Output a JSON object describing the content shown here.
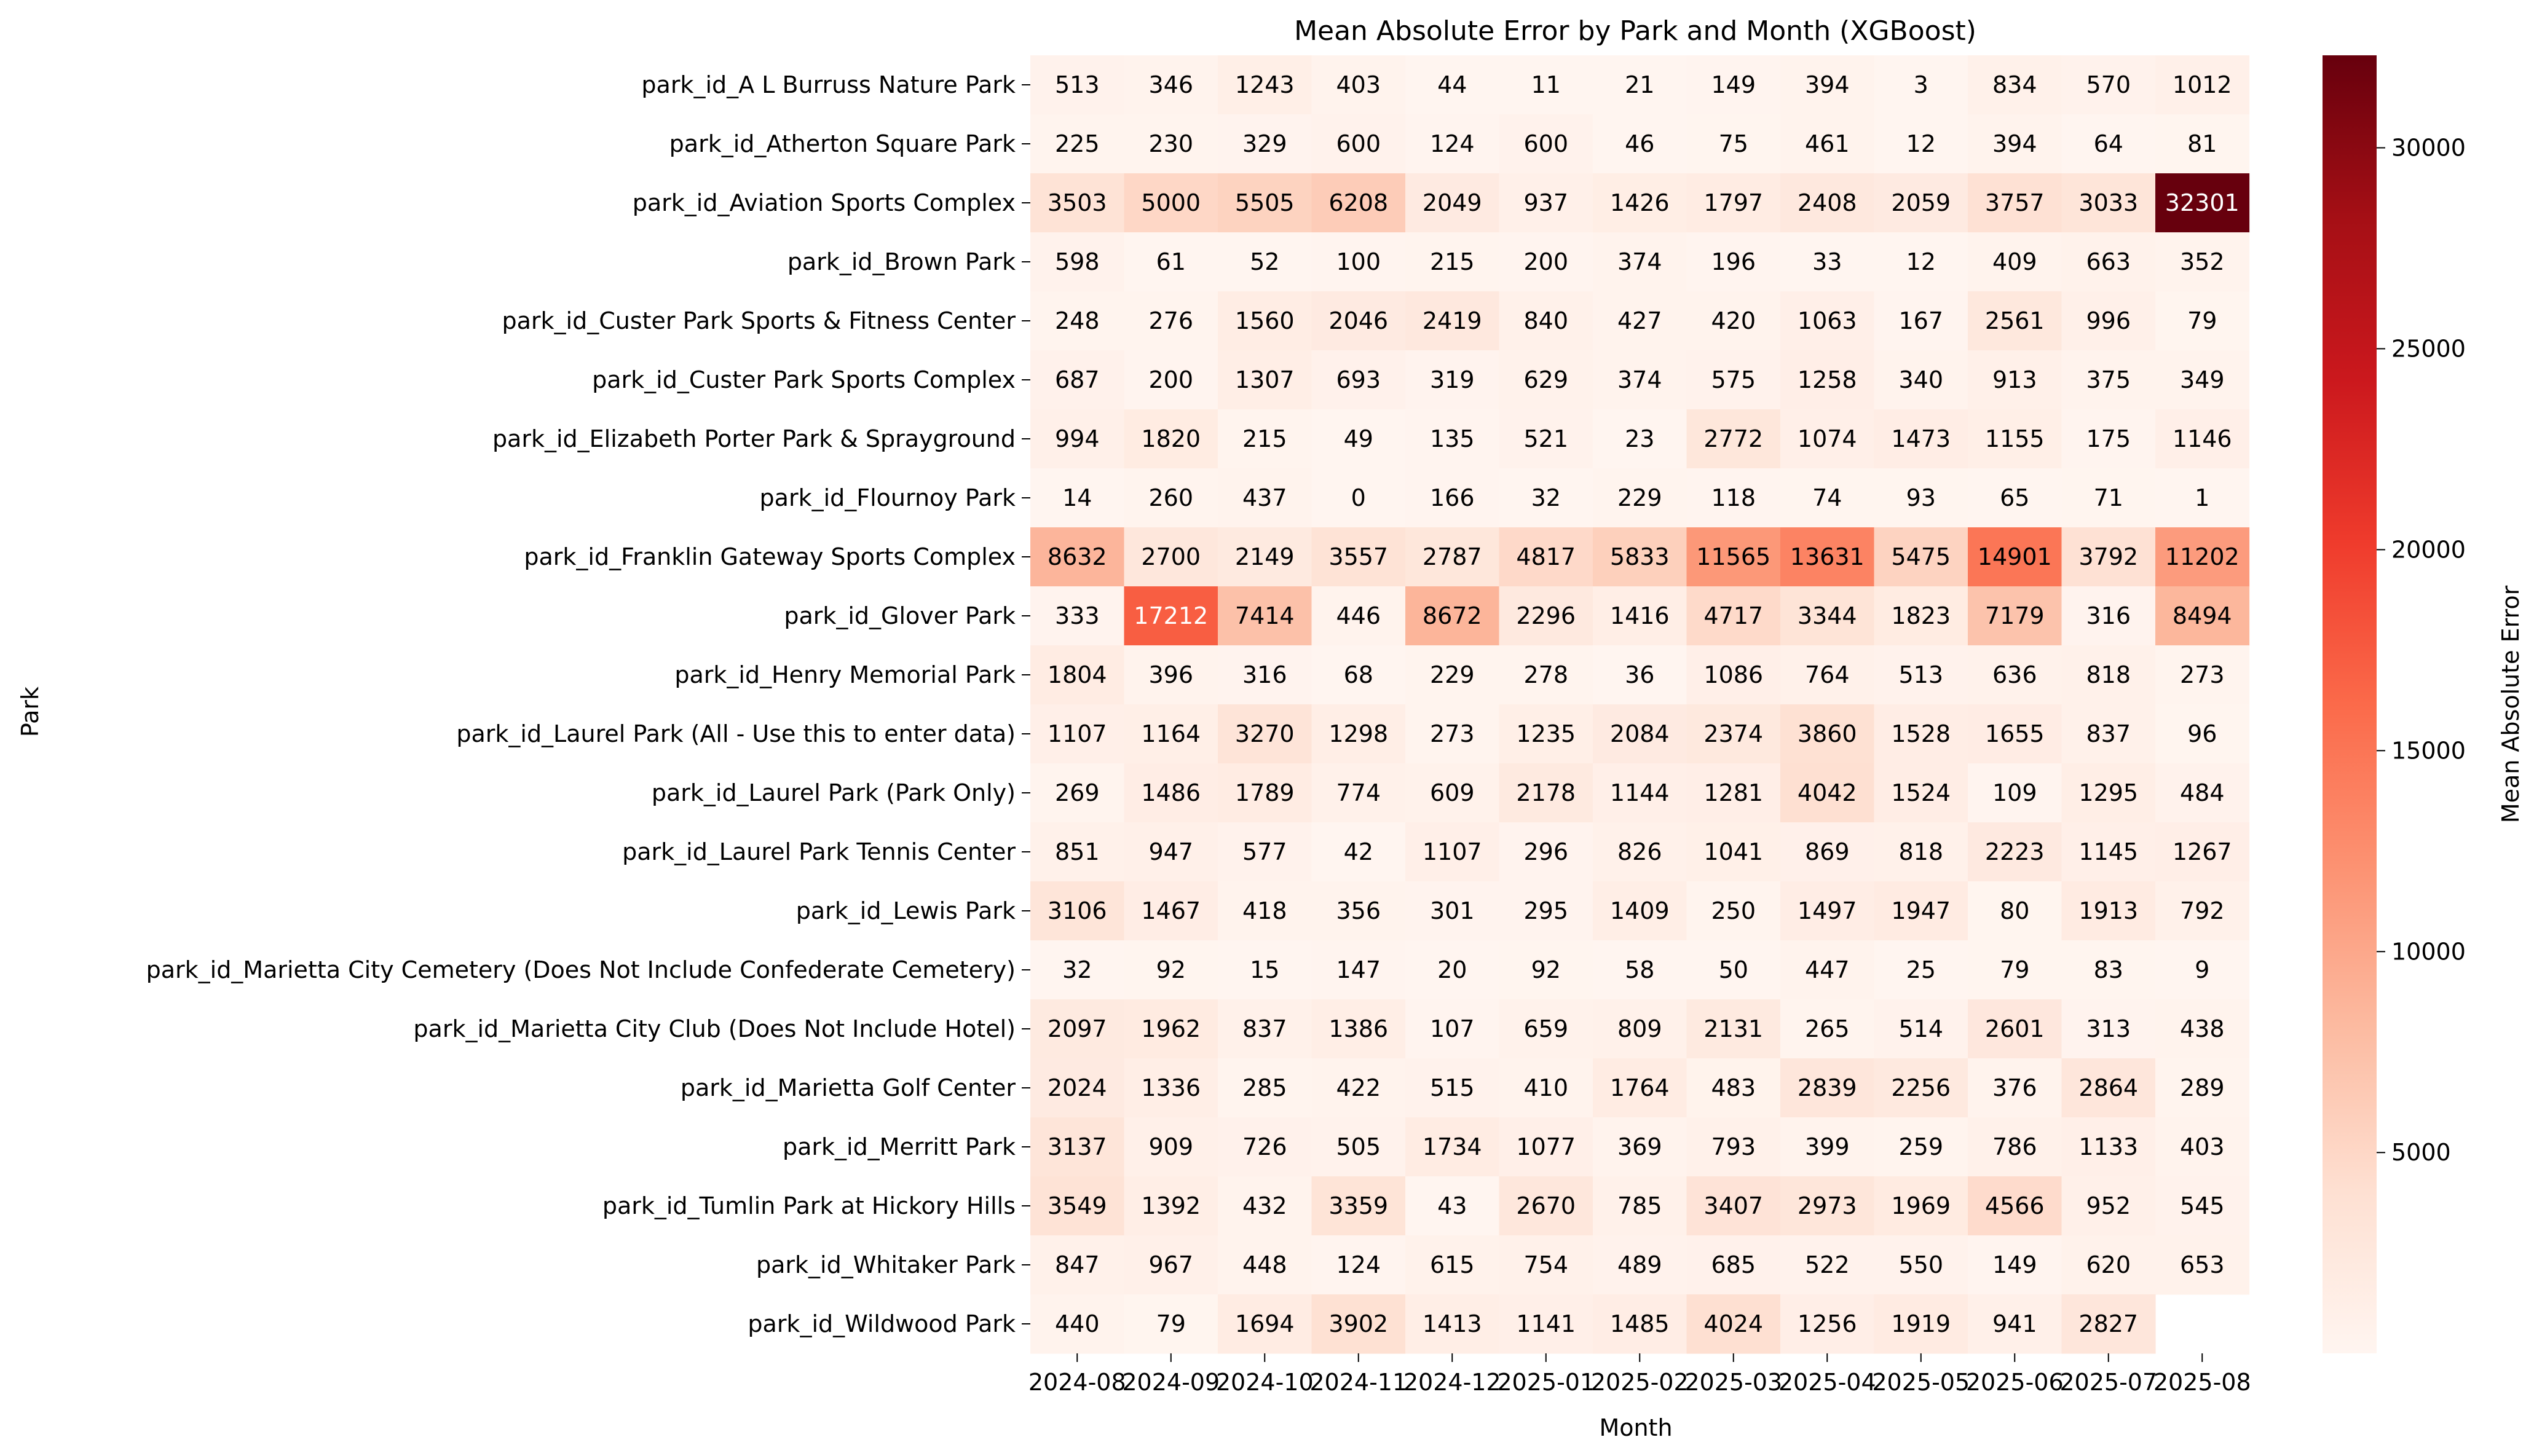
{
  "chart_data": {
    "type": "heatmap",
    "title": "Mean Absolute Error by Park and Month (XGBoost)",
    "xlabel": "Month",
    "ylabel": "Park",
    "colorbar_label": "Mean Absolute Error",
    "colormap": "Reds",
    "color_range": [
      3,
      32301
    ],
    "colorbar_ticks": [
      5000,
      10000,
      15000,
      20000,
      25000,
      30000
    ],
    "months": [
      "2024-08",
      "2024-09",
      "2024-10",
      "2024-11",
      "2024-12",
      "2025-01",
      "2025-02",
      "2025-03",
      "2025-04",
      "2025-05",
      "2025-06",
      "2025-07",
      "2025-08"
    ],
    "parks": [
      "park_id_A L Burruss Nature Park",
      "park_id_Atherton Square Park",
      "park_id_Aviation Sports Complex",
      "park_id_Brown Park",
      "park_id_Custer Park Sports & Fitness Center",
      "park_id_Custer Park Sports Complex",
      "park_id_Elizabeth Porter Park & Sprayground",
      "park_id_Flournoy Park",
      "park_id_Franklin Gateway Sports Complex",
      "park_id_Glover Park",
      "park_id_Henry Memorial Park",
      "park_id_Laurel Park (All - Use this to enter data)",
      "park_id_Laurel Park (Park Only)",
      "park_id_Laurel Park Tennis Center",
      "park_id_Lewis Park",
      "park_id_Marietta City Cemetery (Does Not Include Confederate Cemetery)",
      "park_id_Marietta City Club (Does Not Include Hotel)",
      "park_id_Marietta Golf Center",
      "park_id_Merritt Park",
      "park_id_Tumlin Park at Hickory Hills",
      "park_id_Whitaker Park",
      "park_id_Wildwood Park"
    ],
    "values": [
      [
        513,
        346,
        1243,
        403,
        44,
        11,
        21,
        149,
        394,
        3,
        834,
        570,
        1012
      ],
      [
        225,
        230,
        329,
        600,
        124,
        600,
        46,
        75,
        461,
        12,
        394,
        64,
        81
      ],
      [
        3503,
        5000,
        5505,
        6208,
        2049,
        937,
        1426,
        1797,
        2408,
        2059,
        3757,
        3033,
        32301
      ],
      [
        598,
        61,
        52,
        100,
        215,
        200,
        374,
        196,
        33,
        12,
        409,
        663,
        352
      ],
      [
        248,
        276,
        1560,
        2046,
        2419,
        840,
        427,
        420,
        1063,
        167,
        2561,
        996,
        79
      ],
      [
        687,
        200,
        1307,
        693,
        319,
        629,
        374,
        575,
        1258,
        340,
        913,
        375,
        349
      ],
      [
        994,
        1820,
        215,
        49,
        135,
        521,
        23,
        2772,
        1074,
        1473,
        1155,
        175,
        1146
      ],
      [
        14,
        260,
        437,
        0,
        166,
        32,
        229,
        118,
        74,
        93,
        65,
        71,
        1
      ],
      [
        8632,
        2700,
        2149,
        3557,
        2787,
        4817,
        5833,
        11565,
        13631,
        5475,
        14901,
        3792,
        11202
      ],
      [
        333,
        17212,
        7414,
        446,
        8672,
        2296,
        1416,
        4717,
        3344,
        1823,
        7179,
        316,
        8494
      ],
      [
        1804,
        396,
        316,
        68,
        229,
        278,
        36,
        1086,
        764,
        513,
        636,
        818,
        273
      ],
      [
        1107,
        1164,
        3270,
        1298,
        273,
        1235,
        2084,
        2374,
        3860,
        1528,
        1655,
        837,
        96
      ],
      [
        269,
        1486,
        1789,
        774,
        609,
        2178,
        1144,
        1281,
        4042,
        1524,
        109,
        1295,
        484
      ],
      [
        851,
        947,
        577,
        42,
        1107,
        296,
        826,
        1041,
        869,
        818,
        2223,
        1145,
        1267
      ],
      [
        3106,
        1467,
        418,
        356,
        301,
        295,
        1409,
        250,
        1497,
        1947,
        80,
        1913,
        792
      ],
      [
        32,
        92,
        15,
        147,
        20,
        92,
        58,
        50,
        447,
        25,
        79,
        83,
        9
      ],
      [
        2097,
        1962,
        837,
        1386,
        107,
        659,
        809,
        2131,
        265,
        514,
        2601,
        313,
        438
      ],
      [
        2024,
        1336,
        285,
        422,
        515,
        410,
        1764,
        483,
        2839,
        2256,
        376,
        2864,
        289
      ],
      [
        3137,
        909,
        726,
        505,
        1734,
        1077,
        369,
        793,
        399,
        259,
        786,
        1133,
        403
      ],
      [
        3549,
        1392,
        432,
        3359,
        43,
        2670,
        785,
        3407,
        2973,
        1969,
        4566,
        952,
        545
      ],
      [
        847,
        967,
        448,
        124,
        615,
        754,
        489,
        685,
        522,
        550,
        149,
        620,
        653
      ],
      [
        440,
        79,
        1694,
        3902,
        1413,
        1141,
        1485,
        4024,
        1256,
        1919,
        941,
        2827,
        null
      ]
    ]
  }
}
